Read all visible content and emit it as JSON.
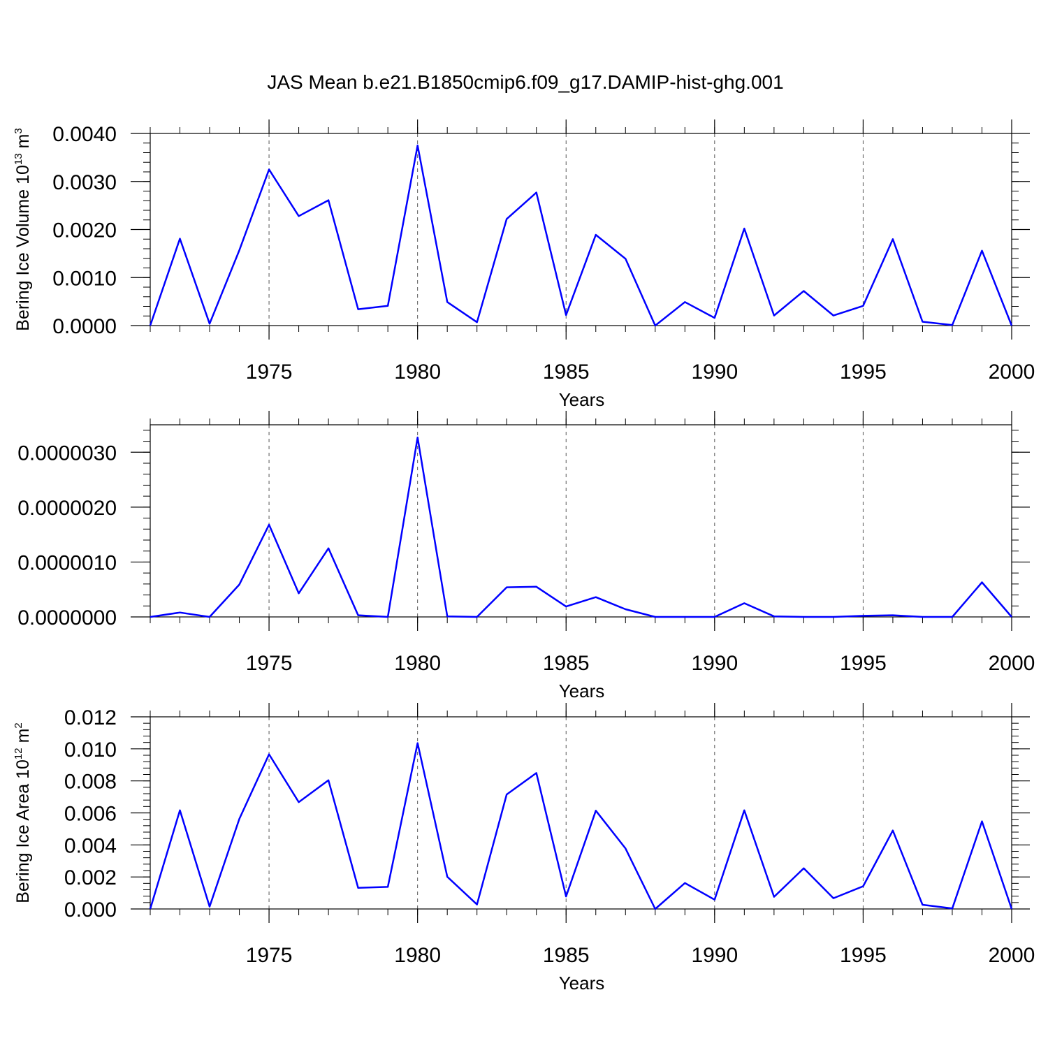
{
  "figure": {
    "title": "JAS Mean b.e21.B1850cmip6.f09_g17.DAMIP-hist-ghg.001",
    "line_color": "#0000ff"
  },
  "chart_data": [
    {
      "type": "line",
      "title": "JAS Mean b.e21.B1850cmip6.f09_g17.DAMIP-hist-ghg.001",
      "xlabel": "Years",
      "ylabel": "Bering Ice Volume 10",
      "ylabel_sup": "13",
      "ylabel_unit": "m",
      "ylabel_unit_sup": "3",
      "xlim": [
        1971,
        2000
      ],
      "ylim": [
        0,
        0.004
      ],
      "yticks": [
        0,
        0.001,
        0.002,
        0.003,
        0.004
      ],
      "ytick_labels": [
        "0.0000",
        "0.0010",
        "0.0020",
        "0.0030",
        "0.0040"
      ],
      "xticks": [
        1975,
        1980,
        1985,
        1990,
        1995,
        2000
      ],
      "xtick_labels": [
        "1975",
        "1980",
        "1985",
        "1990",
        "1995",
        "2000"
      ],
      "x": [
        1971,
        1972,
        1973,
        1974,
        1975,
        1976,
        1977,
        1978,
        1979,
        1980,
        1981,
        1982,
        1983,
        1984,
        1985,
        1986,
        1987,
        1988,
        1989,
        1990,
        1991,
        1992,
        1993,
        1994,
        1995,
        1996,
        1997,
        1998,
        1999,
        2000
      ],
      "values": [
        0.0,
        0.00181,
        4e-05,
        0.00157,
        0.00325,
        0.00228,
        0.00261,
        0.00034,
        0.00041,
        0.00375,
        0.00049,
        7e-05,
        0.00222,
        0.00277,
        0.00022,
        0.00189,
        0.00139,
        0.0,
        0.00049,
        0.00016,
        0.00202,
        0.00021,
        0.00072,
        0.00021,
        0.00041,
        0.0018,
        8e-05,
        1e-05,
        0.00156,
        0.0
      ]
    },
    {
      "type": "line",
      "xlabel": "Years",
      "ylabel": "",
      "xlim": [
        1971,
        2000
      ],
      "ylim": [
        0,
        3.5e-06
      ],
      "yticks": [
        0,
        1e-06,
        2e-06,
        3e-06
      ],
      "ytick_labels": [
        "0.0000000",
        "0.0000010",
        "0.0000020",
        "0.0000030"
      ],
      "xticks": [
        1975,
        1980,
        1985,
        1990,
        1995,
        2000
      ],
      "xtick_labels": [
        "1975",
        "1980",
        "1985",
        "1990",
        "1995",
        "2000"
      ],
      "x": [
        1971,
        1972,
        1973,
        1974,
        1975,
        1976,
        1977,
        1978,
        1979,
        1980,
        1981,
        1982,
        1983,
        1984,
        1985,
        1986,
        1987,
        1988,
        1989,
        1990,
        1991,
        1992,
        1993,
        1994,
        1995,
        1996,
        1997,
        1998,
        1999,
        2000
      ],
      "values": [
        0.0,
        8e-08,
        0.0,
        5.9e-07,
        1.68e-06,
        4.3e-07,
        1.25e-06,
        3e-08,
        0.0,
        3.27e-06,
        1e-08,
        0.0,
        5.4e-07,
        5.5e-07,
        1.9e-07,
        3.6e-07,
        1.4e-07,
        0.0,
        0.0,
        0.0,
        2.5e-07,
        1e-08,
        0.0,
        0.0,
        2e-08,
        3e-08,
        0.0,
        0.0,
        6.3e-07,
        0.0
      ]
    },
    {
      "type": "line",
      "xlabel": "Years",
      "ylabel": "Bering Ice Area 10",
      "ylabel_sup": "12",
      "ylabel_unit": "m",
      "ylabel_unit_sup": "2",
      "xlim": [
        1971,
        2000
      ],
      "ylim": [
        0,
        0.012
      ],
      "yticks": [
        0,
        0.002,
        0.004,
        0.006,
        0.008,
        0.01,
        0.012
      ],
      "ytick_labels": [
        "0.000",
        "0.002",
        "0.004",
        "0.006",
        "0.008",
        "0.010",
        "0.012"
      ],
      "xticks": [
        1975,
        1980,
        1985,
        1990,
        1995,
        2000
      ],
      "xtick_labels": [
        "1975",
        "1980",
        "1985",
        "1990",
        "1995",
        "2000"
      ],
      "x": [
        1971,
        1972,
        1973,
        1974,
        1975,
        1976,
        1977,
        1978,
        1979,
        1980,
        1981,
        1982,
        1983,
        1984,
        1985,
        1986,
        1987,
        1988,
        1989,
        1990,
        1991,
        1992,
        1993,
        1994,
        1995,
        1996,
        1997,
        1998,
        1999,
        2000
      ],
      "values": [
        0.0,
        0.00616,
        0.00015,
        0.00563,
        0.00966,
        0.00667,
        0.00804,
        0.00132,
        0.00138,
        0.01036,
        0.00201,
        0.00028,
        0.00715,
        0.00849,
        0.00078,
        0.00614,
        0.00378,
        0.0,
        0.00162,
        0.00058,
        0.00616,
        0.00076,
        0.00254,
        0.00067,
        0.00142,
        0.0049,
        0.00026,
        3e-05,
        0.00547,
        0.0
      ]
    }
  ]
}
